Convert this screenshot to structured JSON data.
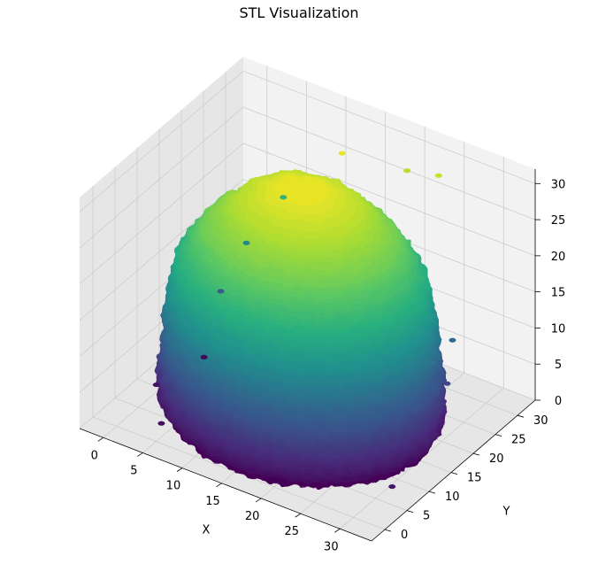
{
  "chart_data": {
    "type": "surface3d",
    "title": "STL Visualization",
    "xlabel": "X",
    "ylabel": "Y",
    "zlabel": "",
    "x_ticks": [
      0,
      5,
      10,
      15,
      20,
      25,
      30
    ],
    "y_ticks": [
      0,
      5,
      10,
      15,
      20,
      25,
      30
    ],
    "z_ticks": [
      0,
      5,
      10,
      15,
      20,
      25,
      30
    ],
    "xlim": [
      -3,
      34
    ],
    "ylim": [
      -3,
      34
    ],
    "zlim": [
      0,
      32
    ],
    "colormap": "viridis",
    "grid": true,
    "surface_profile": [
      {
        "z": 0,
        "radius": 15
      },
      {
        "z": 2,
        "radius": 16
      },
      {
        "z": 5,
        "radius": 16
      },
      {
        "z": 10,
        "radius": 15.5
      },
      {
        "z": 15,
        "radius": 15
      },
      {
        "z": 20,
        "radius": 14
      },
      {
        "z": 25,
        "radius": 11
      },
      {
        "z": 29,
        "radius": 7
      },
      {
        "z": 31,
        "radius": 3
      }
    ],
    "center": {
      "x": 15,
      "y": 15
    },
    "colors": {
      "pane": "#f2f2f2",
      "pane_side": "#e6e6e6",
      "grid": "#cccccc"
    }
  }
}
